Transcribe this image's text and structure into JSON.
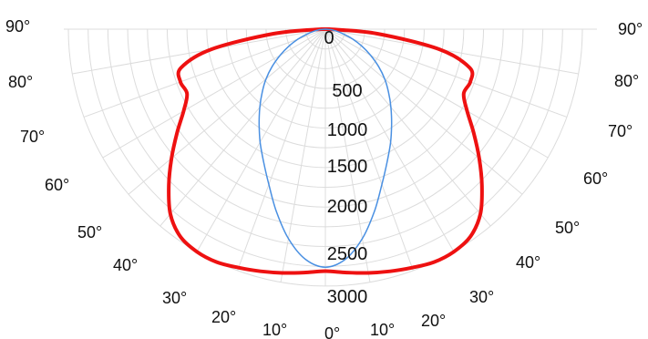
{
  "chart_data": {
    "type": "polar",
    "subtype": "luminous-intensity-distribution",
    "radial_axis": {
      "ticks": [
        0,
        500,
        1000,
        1500,
        2000,
        2500,
        3000
      ],
      "tick_labels": [
        "0",
        "500",
        "1000",
        "1500",
        "2000",
        "2500",
        "3000"
      ],
      "max": 3250
    },
    "angle_axis": {
      "ticks": [
        0,
        10,
        20,
        30,
        40,
        50,
        60,
        70,
        80,
        90
      ],
      "tick_labels": [
        "0°",
        "10°",
        "20°",
        "30°",
        "40°",
        "50°",
        "60°",
        "70°",
        "80°",
        "90°"
      ]
    },
    "grid": true,
    "series": [
      {
        "color": "#ee1111",
        "line_width": "thick",
        "angles_deg": [
          -90,
          -85,
          -80,
          -75,
          -70,
          -65,
          -60,
          -55,
          -50,
          -45,
          -40,
          -35,
          -30,
          -25,
          -20,
          -15,
          -10,
          -5,
          0,
          5,
          10,
          15,
          20,
          25,
          30,
          35,
          40,
          45,
          50,
          55,
          60,
          65,
          70,
          75,
          80,
          85,
          90
        ],
        "values": [
          50,
          660,
          1460,
          1890,
          1950,
          1930,
          2070,
          2290,
          2540,
          2800,
          3050,
          3200,
          3250,
          3250,
          3210,
          3170,
          3130,
          3090,
          3060,
          3090,
          3130,
          3170,
          3210,
          3250,
          3250,
          3200,
          3050,
          2800,
          2540,
          2290,
          2070,
          1930,
          1950,
          1890,
          1460,
          660,
          50
        ]
      },
      {
        "color": "#4a90e2",
        "line_width": "thin",
        "angles_deg": [
          -90,
          -85,
          -80,
          -75,
          -70,
          -65,
          -60,
          -55,
          -50,
          -45,
          -40,
          -35,
          -30,
          -25,
          -20,
          -15,
          -10,
          -5,
          0,
          5,
          10,
          15,
          20,
          25,
          30,
          35,
          40,
          45,
          50,
          55,
          60,
          65,
          70,
          75,
          80,
          85,
          90
        ],
        "values": [
          0,
          70,
          140,
          240,
          370,
          510,
          660,
          820,
          980,
          1130,
          1290,
          1460,
          1650,
          1850,
          2090,
          2390,
          2690,
          2920,
          3010,
          2920,
          2690,
          2390,
          2090,
          1850,
          1650,
          1460,
          1290,
          1130,
          980,
          820,
          660,
          510,
          370,
          240,
          140,
          70,
          0
        ]
      }
    ]
  }
}
